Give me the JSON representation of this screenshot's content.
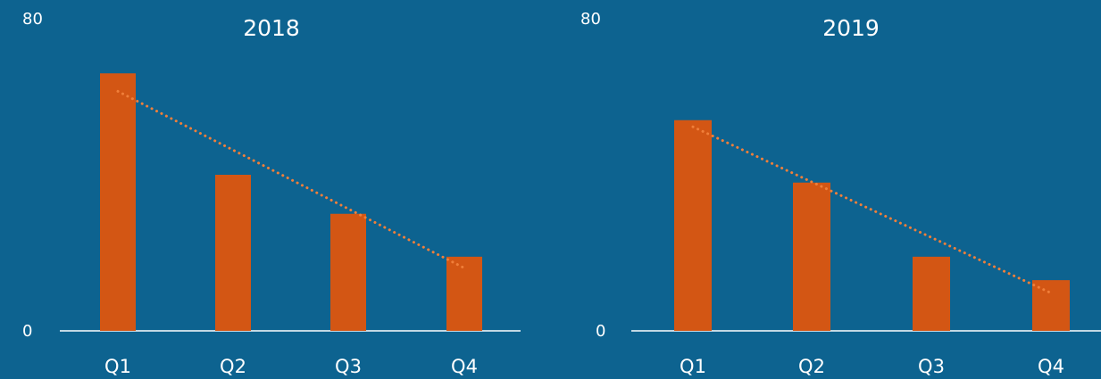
{
  "colors": {
    "background": "#0d6390",
    "bar": "#d35614",
    "trendline": "#f07f3a",
    "axis": "#ffffff",
    "text": "#ffffff"
  },
  "chart_data": [
    {
      "type": "bar",
      "title": "2018",
      "categories": [
        "Q1",
        "Q2",
        "Q3",
        "Q4"
      ],
      "values": [
        66,
        40,
        30,
        19
      ],
      "ylim": [
        0,
        80
      ],
      "yticks": [
        "0",
        "80"
      ],
      "trendline": "linear",
      "grid": false,
      "legend": "none"
    },
    {
      "type": "bar",
      "title": "2019",
      "categories": [
        "Q1",
        "Q2",
        "Q3",
        "Q4"
      ],
      "values": [
        54,
        38,
        19,
        13
      ],
      "ylim": [
        0,
        80
      ],
      "yticks": [
        "0",
        "80"
      ],
      "trendline": "linear",
      "grid": false,
      "legend": "none"
    }
  ]
}
